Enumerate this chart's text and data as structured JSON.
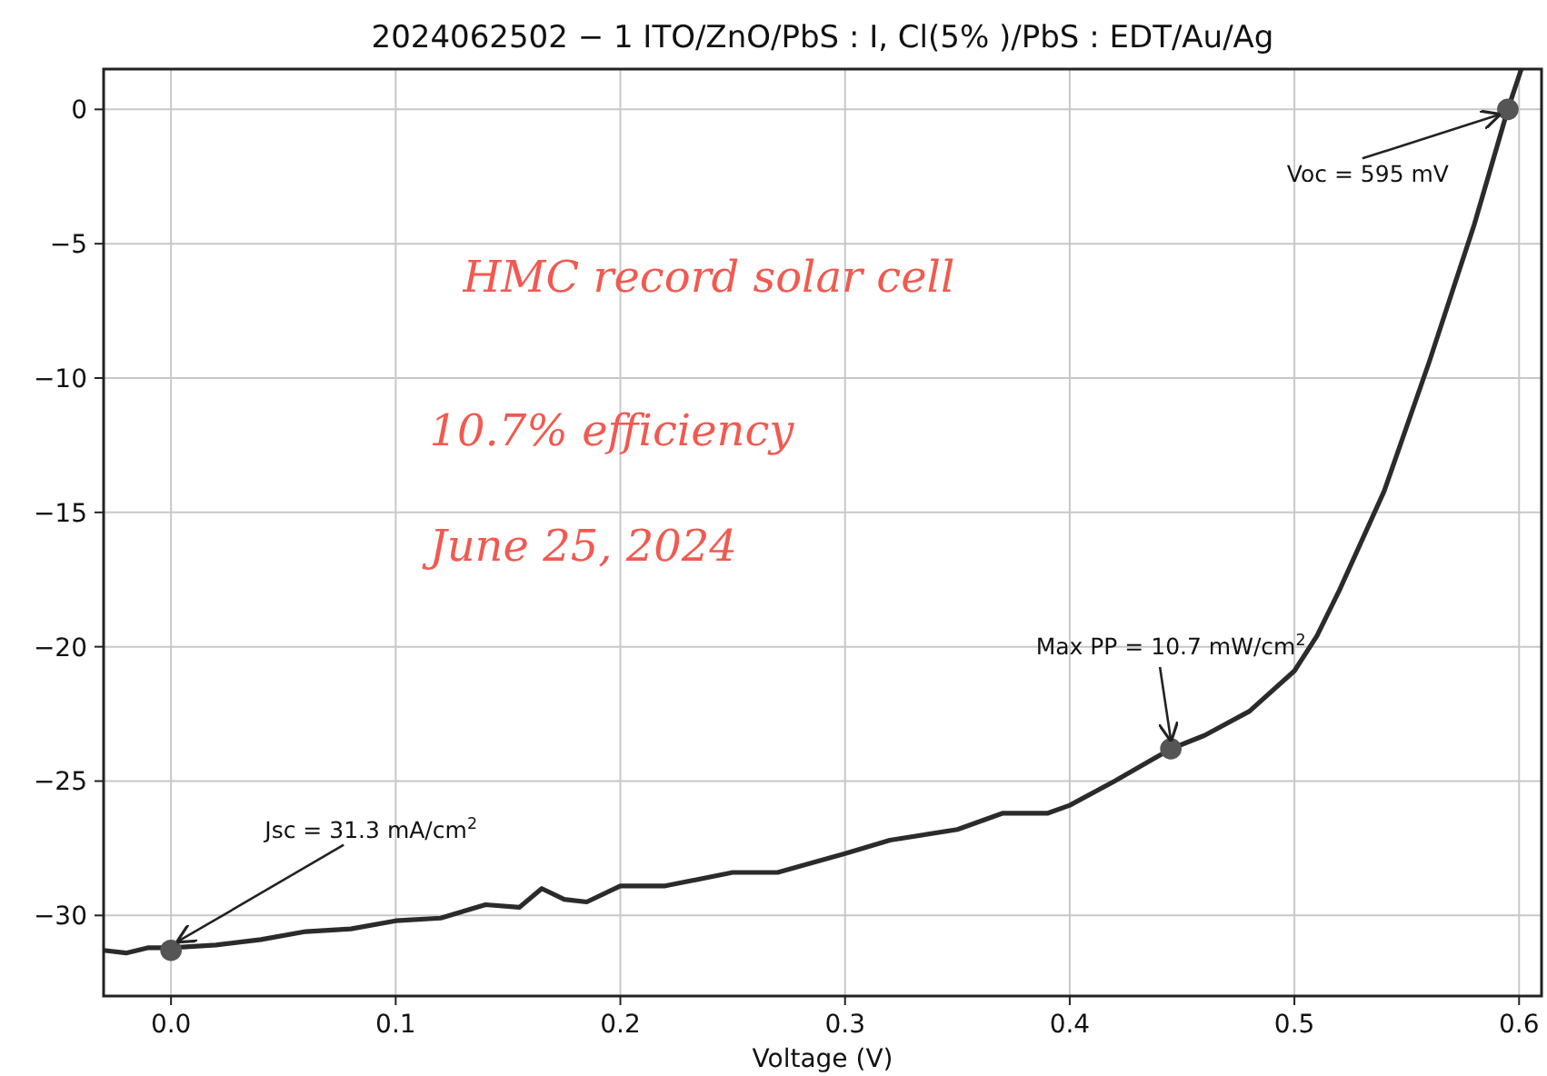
{
  "chart_data": {
    "type": "line",
    "title": "2024062502 − 1 ITO/ZnO/PbS : I, Cl(5% )/PbS : EDT/Au/Ag",
    "xlabel": "Voltage (V)",
    "xlim": [
      -0.03,
      0.61
    ],
    "xticks": [
      {
        "value": 0,
        "label": "0.0"
      },
      0.1,
      0.2,
      0.3,
      0.4,
      0.5,
      0.6
    ],
    "ylim": [
      -33,
      1.5
    ],
    "yticks": [
      {
        "value": -30,
        "label": "−30"
      },
      {
        "value": -25,
        "label": "−25"
      },
      {
        "value": -20,
        "label": "−20"
      },
      {
        "value": -15,
        "label": "−15"
      },
      {
        "value": -10,
        "label": "−10"
      },
      {
        "value": -5,
        "label": "−5"
      },
      0
    ],
    "grid": true,
    "series": [
      {
        "color": "#2b2b2b",
        "marker": "none",
        "x": [
          -0.03,
          -0.02,
          -0.01,
          0,
          0.02,
          0.04,
          0.06,
          0.08,
          0.1,
          0.12,
          0.14,
          0.155,
          0.165,
          0.175,
          0.185,
          0.2,
          0.22,
          0.25,
          0.27,
          0.3,
          0.32,
          0.35,
          0.37,
          0.39,
          0.4,
          0.42,
          0.445,
          0.46,
          0.48,
          0.5,
          0.51,
          0.52,
          0.54,
          0.56,
          0.58,
          0.595,
          0.601
        ],
        "values": [
          -31.3,
          -31.4,
          -31.2,
          -31.2,
          -31.1,
          -30.9,
          -30.6,
          -30.5,
          -30.2,
          -30.1,
          -29.6,
          -29.7,
          -29.0,
          -29.4,
          -29.5,
          -28.9,
          -28.9,
          -28.4,
          -28.4,
          -27.7,
          -27.2,
          -26.8,
          -26.2,
          -26.2,
          -25.9,
          -25.0,
          -23.8,
          -23.3,
          -22.4,
          -20.9,
          -19.6,
          -17.9,
          -14.2,
          -9.4,
          -4.3,
          0,
          1.5
        ]
      },
      {
        "type": "scatter",
        "color": "#555555",
        "marker": "circle",
        "x": [
          0,
          0.445,
          0.595
        ],
        "values": [
          -31.3,
          -23.8,
          0
        ]
      }
    ],
    "annotations": [
      {
        "text": "Jsc = 31.3 mA/cm$^{2}$",
        "x": 0,
        "y": -31.3
      },
      {
        "text": "Max PP = 10.7 mW/cm$^{2}$",
        "x": 0.445,
        "y": -23.8
      },
      {
        "text": "Voc = 595 mV",
        "x": 0.595,
        "y": 0
      },
      "HMC record solar cell",
      "10.7% efficiency",
      "June 25, 2024"
    ]
  }
}
